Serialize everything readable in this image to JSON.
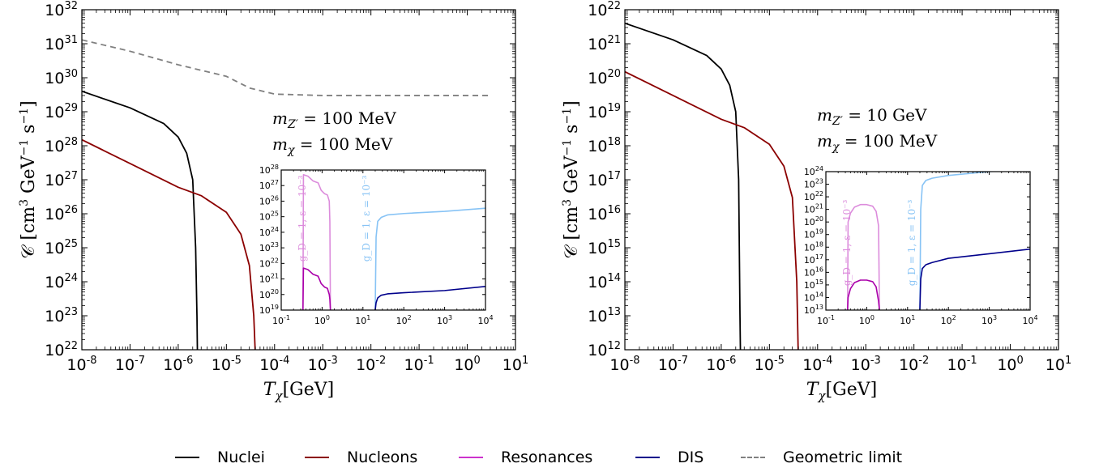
{
  "chart_data": [
    {
      "type": "line",
      "xlabel": "T_χ [GeV]",
      "ylabel": "𝒞 [cm³ GeV⁻¹ s⁻¹]",
      "xscale": "log",
      "yscale": "log",
      "xlim": [
        1e-08,
        10
      ],
      "ylim": [
        1e+22,
        1e+32
      ],
      "x_tick_exponents": [
        -8,
        -7,
        -6,
        -5,
        -4,
        -3,
        -2,
        -1,
        0,
        1
      ],
      "y_tick_exponents": [
        22,
        23,
        24,
        25,
        26,
        27,
        28,
        29,
        30,
        31,
        32
      ],
      "annotations": [
        "m_Z′ = 100 MeV",
        "m_χ = 100 MeV"
      ],
      "series": [
        {
          "name": "Nuclei",
          "color": "#000000",
          "dash": false,
          "x": [
            1e-08,
            1e-07,
            5e-07,
            1e-06,
            1.5e-06,
            2e-06,
            2.3e-06,
            2.45e-06,
            2.5e-06
          ],
          "y": [
            4e+29,
            1.3e+29,
            4.5e+28,
            1.8e+28,
            6e+27,
            1e+27,
            1e+25,
            1e+23,
            1e+22
          ]
        },
        {
          "name": "Nucleons",
          "color": "#8b0000",
          "dash": false,
          "x": [
            1e-08,
            1e-07,
            1e-06,
            3e-06,
            1e-05,
            2e-05,
            3e-05,
            3.7e-05,
            3.95e-05,
            4e-05
          ],
          "y": [
            1.5e+28,
            3e+27,
            6e+26,
            3.4e+26,
            1.1e+26,
            2.5e+25,
            3e+24,
            1e+23,
            1e+22,
            1e+22
          ]
        },
        {
          "name": "Geometric limit",
          "color": "#808080",
          "dash": true,
          "x": [
            1e-08,
            1e-07,
            1e-06,
            1e-05,
            3e-05,
            0.0001,
            0.001,
            0.01,
            0.1,
            1,
            3
          ],
          "y": [
            1.3e+31,
            6e+30,
            2.4e+30,
            1.1e+30,
            5e+29,
            3.3e+29,
            3e+29,
            3e+29,
            3e+29,
            3e+29,
            3e+29
          ]
        }
      ],
      "inset": {
        "type": "line",
        "xscale": "log",
        "yscale": "log",
        "xlim": [
          0.1,
          10000.0
        ],
        "ylim": [
          1e+19,
          1e+28
        ],
        "x_tick_exponents": [
          -1,
          0,
          1,
          2,
          3,
          4
        ],
        "y_tick_exponents": [
          19,
          20,
          21,
          22,
          23,
          24,
          25,
          26,
          27,
          28
        ],
        "vertical_labels": [
          "g_D = 1, ε = 10⁻³",
          "g_D = 1, ε = 10⁻³"
        ],
        "series": [
          {
            "name": "Resonances",
            "color": "#dc8cdc",
            "dash": false,
            "x": [
              0.34,
              0.35,
              0.45,
              0.6,
              0.8,
              0.95,
              1.15,
              1.35,
              1.5,
              1.55,
              1.6
            ],
            "y": [
              1e+19,
              5e+27,
              4e+27,
              2e+27,
              1.5e+27,
              5e+26,
              3e+26,
              2.5e+26,
              1e+26,
              5e+24,
              1e+19
            ]
          },
          {
            "name": "Resonances",
            "color": "#aa00aa",
            "dash": false,
            "x": [
              0.34,
              0.35,
              0.45,
              0.6,
              0.8,
              0.95,
              1.15,
              1.35,
              1.5,
              1.55,
              1.6
            ],
            "y": [
              1e+19,
              5e+21,
              4e+21,
              2e+21,
              1.5e+21,
              5e+20,
              3e+20,
              2.5e+20,
              1e+20,
              5e+19,
              1e+19
            ]
          },
          {
            "name": "DIS",
            "color": "#87c3f5",
            "dash": false,
            "x": [
              20,
              21,
              23,
              28,
              40,
              100,
              1000,
              10000.0
            ],
            "y": [
              1e+19,
              5e+23,
              5e+24,
              9e+24,
              1.3e+25,
              1.6e+25,
              2.2e+25,
              3.5e+25
            ]
          },
          {
            "name": "DIS",
            "color": "#00008b",
            "dash": false,
            "x": [
              20,
              21,
              23,
              28,
              40,
              100,
              1000,
              10000.0
            ],
            "y": [
              1e+19,
              3e+19,
              6e+19,
              9e+19,
              1.1e+20,
              1.3e+20,
              1.8e+20,
              3.3e+20
            ]
          }
        ]
      }
    },
    {
      "type": "line",
      "xlabel": "T_χ [GeV]",
      "ylabel": "𝒞 [cm³ GeV⁻¹ s⁻¹]",
      "xscale": "log",
      "yscale": "log",
      "xlim": [
        1e-08,
        10
      ],
      "ylim": [
        1000000000000.0,
        1e+22
      ],
      "x_tick_exponents": [
        -8,
        -7,
        -6,
        -5,
        -4,
        -3,
        -2,
        -1,
        0,
        1
      ],
      "y_tick_exponents": [
        12,
        13,
        14,
        15,
        16,
        17,
        18,
        19,
        20,
        21,
        22
      ],
      "annotations": [
        "m_Z′ = 10 GeV",
        "m_χ = 100 MeV"
      ],
      "series": [
        {
          "name": "Nuclei",
          "color": "#000000",
          "dash": false,
          "x": [
            1e-08,
            1e-07,
            5e-07,
            1e-06,
            1.5e-06,
            2e-06,
            2.3e-06,
            2.45e-06,
            2.5e-06
          ],
          "y": [
            4e+21,
            1.3e+21,
            4.5e+20,
            1.8e+20,
            6e+19,
            1e+19,
            1e+17,
            10000000000000.0,
            1000000000000.0
          ]
        },
        {
          "name": "Nucleons",
          "color": "#8b0000",
          "dash": false,
          "x": [
            1e-08,
            1e-07,
            1e-06,
            3e-06,
            1e-05,
            2e-05,
            3e-05,
            3.7e-05,
            3.95e-05,
            4e-05
          ],
          "y": [
            1.5e+20,
            3e+19,
            6e+18,
            3.4e+18,
            1.1e+18,
            2.5e+17,
            3e+16,
            100000000000000.0,
            1000000000000.0,
            1000000000000.0
          ]
        }
      ],
      "inset": {
        "type": "line",
        "xscale": "log",
        "yscale": "log",
        "xlim": [
          0.1,
          10000.0
        ],
        "ylim": [
          10000000000000.0,
          1e+24
        ],
        "x_tick_exponents": [
          -1,
          0,
          1,
          2,
          3,
          4
        ],
        "y_tick_exponents": [
          13,
          14,
          15,
          16,
          17,
          18,
          19,
          20,
          21,
          22,
          23,
          24
        ],
        "vertical_labels": [
          "g_D = 1, ε = 10⁻³",
          "g_D = 1, ε = 10⁻³"
        ],
        "series": [
          {
            "name": "Resonances",
            "color": "#dc8cdc",
            "dash": false,
            "x": [
              0.34,
              0.35,
              0.4,
              0.5,
              0.7,
              1.0,
              1.4,
              1.7,
              1.95,
              2.05
            ],
            "y": [
              10000000000000.0,
              1e+20,
              5e+20,
              1.5e+21,
              2.4e+21,
              2.4e+21,
              1.8e+21,
              7e+20,
              5e+19,
              10000000000000.0
            ]
          },
          {
            "name": "Resonances",
            "color": "#aa00aa",
            "dash": false,
            "x": [
              0.34,
              0.35,
              0.4,
              0.5,
              0.7,
              1.0,
              1.4,
              1.7,
              1.95,
              2.05
            ],
            "y": [
              10000000000000.0,
              100000000000000.0,
              500000000000000.0,
              1500000000000000.0,
              2400000000000000.0,
              2400000000000000.0,
              1800000000000000.0,
              700000000000000.0,
              50000000000000.0,
              10000000000000.0
            ]
          },
          {
            "name": "DIS",
            "color": "#87c3f5",
            "dash": false,
            "x": [
              20,
              21,
              23,
              28,
              40,
              100,
              1000,
              10000.0
            ],
            "y": [
              10000000000000.0,
              1e+21,
              8e+22,
              2e+23,
              3e+23,
              5e+23,
              1e+24,
              1.5e+24
            ]
          },
          {
            "name": "DIS",
            "color": "#00008b",
            "dash": false,
            "x": [
              20,
              21,
              23,
              28,
              40,
              100,
              1000,
              10000.0
            ],
            "y": [
              10000000000000.0,
              3000000000000000.0,
              2e+16,
              4e+16,
              6e+16,
              1.3e+17,
              3e+17,
              7e+17
            ]
          }
        ]
      }
    }
  ],
  "legend": [
    {
      "label": "Nuclei",
      "color": "#000000",
      "dash": false
    },
    {
      "label": "Nucleons",
      "color": "#8b0000",
      "dash": false
    },
    {
      "label": "Resonances",
      "color": "#cc33cc",
      "dash": false
    },
    {
      "label": "DIS",
      "color": "#00008b",
      "dash": false
    },
    {
      "label": "Geometric limit",
      "color": "#808080",
      "dash": true
    }
  ]
}
